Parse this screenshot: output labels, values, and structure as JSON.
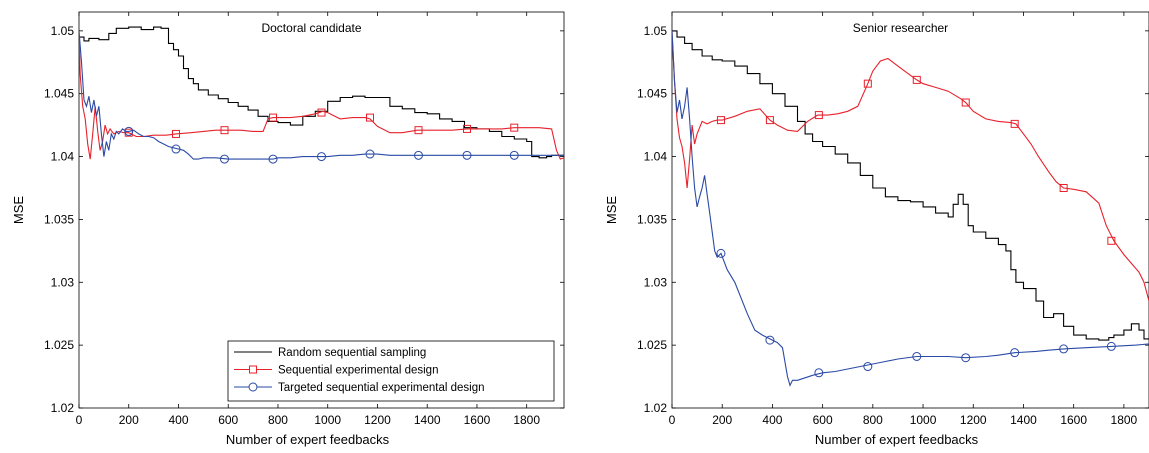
{
  "legend": {
    "entries": [
      {
        "label": "Random sequential sampling",
        "color": "#000000",
        "marker": "none"
      },
      {
        "label": "Sequential experimental design",
        "color": "#e8212b",
        "marker": "square"
      },
      {
        "label": "Targeted sequential experimental design",
        "color": "#2a4aa5",
        "marker": "circle"
      }
    ]
  },
  "chart_data": [
    {
      "type": "line",
      "title": "Doctoral candidate",
      "xlabel": "Number of expert feedbacks",
      "ylabel": "MSE",
      "xlim": [
        0,
        1950
      ],
      "ylim": [
        1.02,
        1.0515
      ],
      "xticks": [
        0,
        200,
        400,
        600,
        800,
        1000,
        1200,
        1400,
        1600,
        1800
      ],
      "xtick_labels": [
        "0",
        "200",
        "400",
        "600",
        "800",
        "1000",
        "1200",
        "1400",
        "1600",
        "1800"
      ],
      "yticks": [
        1.02,
        1.025,
        1.03,
        1.035,
        1.04,
        1.045,
        1.05
      ],
      "ytick_labels": [
        "1.02",
        "1.025",
        "1.03",
        "1.035",
        "1.04",
        "1.045",
        "1.05"
      ],
      "legend_position": "bottom-right",
      "series": [
        {
          "name": "Random sequential sampling",
          "color": "#000000",
          "marker": "none",
          "step": true,
          "x": [
            0,
            20,
            40,
            80,
            120,
            150,
            200,
            250,
            300,
            330,
            360,
            380,
            400,
            420,
            440,
            460,
            480,
            520,
            560,
            600,
            640,
            680,
            720,
            760,
            800,
            850,
            900,
            950,
            1000,
            1050,
            1100,
            1150,
            1200,
            1250,
            1300,
            1350,
            1400,
            1450,
            1500,
            1550,
            1600,
            1650,
            1700,
            1750,
            1800,
            1820,
            1850,
            1880,
            1900,
            1950
          ],
          "y": [
            1.0495,
            1.0492,
            1.0494,
            1.0493,
            1.0498,
            1.0502,
            1.0503,
            1.0501,
            1.0503,
            1.0502,
            1.049,
            1.0485,
            1.048,
            1.047,
            1.0462,
            1.0458,
            1.0453,
            1.0449,
            1.0446,
            1.0443,
            1.044,
            1.0437,
            1.0432,
            1.0428,
            1.0427,
            1.0425,
            1.0432,
            1.0436,
            1.0444,
            1.0447,
            1.0448,
            1.0447,
            1.0447,
            1.044,
            1.0438,
            1.0435,
            1.0434,
            1.043,
            1.0428,
            1.0423,
            1.0422,
            1.042,
            1.0416,
            1.0414,
            1.0412,
            1.04,
            1.0399,
            1.04,
            1.0401,
            1.0401
          ]
        },
        {
          "name": "Sequential experimental design",
          "color": "#e8212b",
          "marker": "square",
          "x": [
            0,
            5,
            15,
            25,
            35,
            45,
            55,
            65,
            75,
            85,
            95,
            105,
            115,
            125,
            140,
            160,
            180,
            200,
            230,
            260,
            300,
            350,
            390,
            450,
            500,
            550,
            600,
            650,
            700,
            740,
            760,
            780,
            800,
            850,
            900,
            950,
            980,
            1000,
            1050,
            1100,
            1150,
            1170,
            1200,
            1250,
            1300,
            1360,
            1400,
            1450,
            1500,
            1560,
            1600,
            1650,
            1700,
            1750,
            1800,
            1850,
            1900,
            1920,
            1935,
            1950
          ],
          "y": [
            1.05,
            1.0465,
            1.044,
            1.043,
            1.041,
            1.0398,
            1.0418,
            1.044,
            1.042,
            1.0405,
            1.0412,
            1.0425,
            1.0418,
            1.0422,
            1.0418,
            1.042,
            1.0419,
            1.0419,
            1.0416,
            1.0416,
            1.0417,
            1.0417,
            1.0418,
            1.0419,
            1.042,
            1.0421,
            1.0421,
            1.0421,
            1.042,
            1.042,
            1.043,
            1.0431,
            1.0431,
            1.0431,
            1.0432,
            1.0434,
            1.0436,
            1.0435,
            1.043,
            1.0431,
            1.0431,
            1.043,
            1.0424,
            1.0419,
            1.0419,
            1.0421,
            1.0421,
            1.0421,
            1.0421,
            1.0422,
            1.0422,
            1.0422,
            1.0422,
            1.0423,
            1.0423,
            1.0423,
            1.0422,
            1.0405,
            1.0398,
            1.0399
          ],
          "marker_x": [
            200,
            390,
            585,
            780,
            975,
            1170,
            1365,
            1560,
            1750
          ],
          "marker_y": [
            1.0419,
            1.0418,
            1.0421,
            1.0431,
            1.0435,
            1.0431,
            1.0421,
            1.0422,
            1.0423
          ]
        },
        {
          "name": "Targeted sequential experimental design",
          "color": "#2a4aa5",
          "marker": "circle",
          "x": [
            0,
            10,
            20,
            30,
            40,
            50,
            60,
            70,
            80,
            90,
            100,
            110,
            120,
            130,
            140,
            150,
            160,
            175,
            190,
            200,
            220,
            240,
            260,
            280,
            300,
            320,
            340,
            360,
            380,
            400,
            420,
            440,
            460,
            480,
            500,
            550,
            600,
            650,
            700,
            750,
            780,
            800,
            850,
            900,
            950,
            1000,
            1050,
            1100,
            1150,
            1200,
            1250,
            1300,
            1350,
            1400,
            1450,
            1500,
            1550,
            1600,
            1650,
            1700,
            1750,
            1800,
            1850,
            1900,
            1950
          ],
          "y": [
            1.05,
            1.0475,
            1.0445,
            1.044,
            1.0448,
            1.0435,
            1.0445,
            1.0432,
            1.044,
            1.0418,
            1.04,
            1.0412,
            1.0405,
            1.0418,
            1.0414,
            1.042,
            1.0418,
            1.0422,
            1.042,
            1.042,
            1.0421,
            1.0418,
            1.0416,
            1.0416,
            1.0415,
            1.0412,
            1.041,
            1.0408,
            1.0407,
            1.0406,
            1.0405,
            1.0402,
            1.0398,
            1.0398,
            1.0399,
            1.0399,
            1.0398,
            1.0398,
            1.0398,
            1.0398,
            1.0398,
            1.0399,
            1.0399,
            1.04,
            1.04,
            1.04,
            1.0401,
            1.0401,
            1.0402,
            1.0402,
            1.0401,
            1.0401,
            1.0401,
            1.0401,
            1.0401,
            1.0401,
            1.0401,
            1.0401,
            1.0401,
            1.0401,
            1.0401,
            1.0401,
            1.0401,
            1.0401,
            1.0401
          ],
          "marker_x": [
            200,
            390,
            585,
            780,
            975,
            1170,
            1365,
            1560,
            1750
          ],
          "marker_y": [
            1.042,
            1.0406,
            1.0398,
            1.0398,
            1.04,
            1.0402,
            1.0401,
            1.0401,
            1.0401
          ]
        }
      ]
    },
    {
      "type": "line",
      "title": "Senior researcher",
      "xlabel": "Number of expert feedbacks",
      "ylabel": "MSE",
      "xlim": [
        0,
        1900
      ],
      "ylim": [
        1.02,
        1.0515
      ],
      "xticks": [
        0,
        200,
        400,
        600,
        800,
        1000,
        1200,
        1400,
        1600,
        1800
      ],
      "xtick_labels": [
        "0",
        "200",
        "400",
        "600",
        "800",
        "1000",
        "1200",
        "1400",
        "1600",
        "1800"
      ],
      "yticks": [
        1.02,
        1.025,
        1.03,
        1.035,
        1.04,
        1.045,
        1.05
      ],
      "ytick_labels": [
        "1.02",
        "1.025",
        "1.03",
        "1.035",
        "1.04",
        "1.045",
        "1.05"
      ],
      "series": [
        {
          "name": "Random sequential sampling",
          "color": "#000000",
          "marker": "none",
          "step": true,
          "x": [
            0,
            20,
            50,
            80,
            120,
            160,
            200,
            250,
            300,
            350,
            400,
            450,
            500,
            530,
            560,
            600,
            650,
            700,
            750,
            800,
            850,
            900,
            950,
            1000,
            1050,
            1100,
            1120,
            1140,
            1160,
            1180,
            1200,
            1250,
            1300,
            1330,
            1350,
            1370,
            1400,
            1450,
            1480,
            1520,
            1560,
            1600,
            1650,
            1700,
            1740,
            1760,
            1800,
            1830,
            1860,
            1880,
            1900
          ],
          "y": [
            1.05,
            1.0495,
            1.049,
            1.0485,
            1.048,
            1.0477,
            1.0476,
            1.0472,
            1.0466,
            1.0458,
            1.045,
            1.044,
            1.0428,
            1.0418,
            1.0412,
            1.0408,
            1.0402,
            1.0395,
            1.0385,
            1.0375,
            1.0368,
            1.0365,
            1.0364,
            1.036,
            1.0355,
            1.0352,
            1.0362,
            1.037,
            1.0362,
            1.0345,
            1.034,
            1.0335,
            1.033,
            1.0325,
            1.031,
            1.03,
            1.0295,
            1.0285,
            1.0272,
            1.0275,
            1.0265,
            1.0258,
            1.0255,
            1.0254,
            1.0256,
            1.0258,
            1.0262,
            1.0267,
            1.0262,
            1.0255,
            1.0255
          ]
        },
        {
          "name": "Sequential experimental design",
          "color": "#e8212b",
          "marker": "square",
          "x": [
            0,
            10,
            20,
            30,
            40,
            50,
            60,
            70,
            80,
            90,
            100,
            120,
            140,
            160,
            180,
            200,
            250,
            300,
            350,
            390,
            420,
            460,
            500,
            540,
            580,
            620,
            660,
            700,
            740,
            780,
            800,
            830,
            860,
            900,
            940,
            975,
            1000,
            1050,
            1100,
            1150,
            1170,
            1200,
            1250,
            1300,
            1350,
            1370,
            1400,
            1430,
            1460,
            1500,
            1530,
            1560,
            1600,
            1650,
            1700,
            1730,
            1760,
            1800,
            1830,
            1860,
            1880,
            1900
          ],
          "y": [
            1.05,
            1.046,
            1.043,
            1.0415,
            1.0408,
            1.0395,
            1.0375,
            1.0398,
            1.0425,
            1.041,
            1.0418,
            1.0428,
            1.0426,
            1.0428,
            1.0429,
            1.0429,
            1.0432,
            1.0436,
            1.0438,
            1.0429,
            1.0425,
            1.0421,
            1.042,
            1.0428,
            1.0433,
            1.0433,
            1.0434,
            1.0436,
            1.044,
            1.0458,
            1.0468,
            1.0476,
            1.0478,
            1.0472,
            1.0466,
            1.0461,
            1.0458,
            1.0455,
            1.0452,
            1.0446,
            1.0443,
            1.0436,
            1.043,
            1.0428,
            1.0427,
            1.0426,
            1.0418,
            1.041,
            1.04,
            1.0388,
            1.038,
            1.0375,
            1.0374,
            1.0372,
            1.0363,
            1.0345,
            1.0333,
            1.0322,
            1.0315,
            1.0308,
            1.03,
            1.0285
          ],
          "marker_x": [
            195,
            390,
            585,
            780,
            975,
            1170,
            1365,
            1560,
            1750
          ],
          "marker_y": [
            1.0429,
            1.0429,
            1.0433,
            1.0458,
            1.0461,
            1.0443,
            1.0426,
            1.0375,
            1.0333
          ]
        },
        {
          "name": "Targeted sequential experimental design",
          "color": "#2a4aa5",
          "marker": "circle",
          "x": [
            0,
            10,
            20,
            30,
            40,
            50,
            60,
            70,
            80,
            90,
            100,
            110,
            120,
            130,
            140,
            150,
            160,
            170,
            180,
            195,
            220,
            250,
            280,
            300,
            330,
            360,
            390,
            420,
            440,
            460,
            470,
            480,
            500,
            530,
            560,
            600,
            650,
            700,
            750,
            800,
            850,
            900,
            975,
            1050,
            1100,
            1170,
            1250,
            1300,
            1365,
            1450,
            1500,
            1560,
            1650,
            1750,
            1850,
            1900
          ],
          "y": [
            1.05,
            1.046,
            1.0435,
            1.0445,
            1.043,
            1.044,
            1.0455,
            1.043,
            1.04,
            1.0375,
            1.036,
            1.0368,
            1.0375,
            1.0385,
            1.037,
            1.0355,
            1.034,
            1.0325,
            1.032,
            1.0323,
            1.031,
            1.03,
            1.0285,
            1.0275,
            1.0262,
            1.0258,
            1.0255,
            1.0252,
            1.0248,
            1.0225,
            1.0218,
            1.0222,
            1.0222,
            1.0224,
            1.0226,
            1.0228,
            1.0229,
            1.0231,
            1.0233,
            1.0235,
            1.0237,
            1.0239,
            1.0241,
            1.0241,
            1.0241,
            1.024,
            1.0241,
            1.0242,
            1.0244,
            1.0245,
            1.0246,
            1.0247,
            1.0248,
            1.0249,
            1.025,
            1.0251
          ],
          "marker_x": [
            195,
            390,
            585,
            780,
            975,
            1170,
            1365,
            1560,
            1750
          ],
          "marker_y": [
            1.0323,
            1.0254,
            1.0228,
            1.0233,
            1.0241,
            1.024,
            1.0244,
            1.0247,
            1.0249
          ]
        }
      ]
    }
  ]
}
